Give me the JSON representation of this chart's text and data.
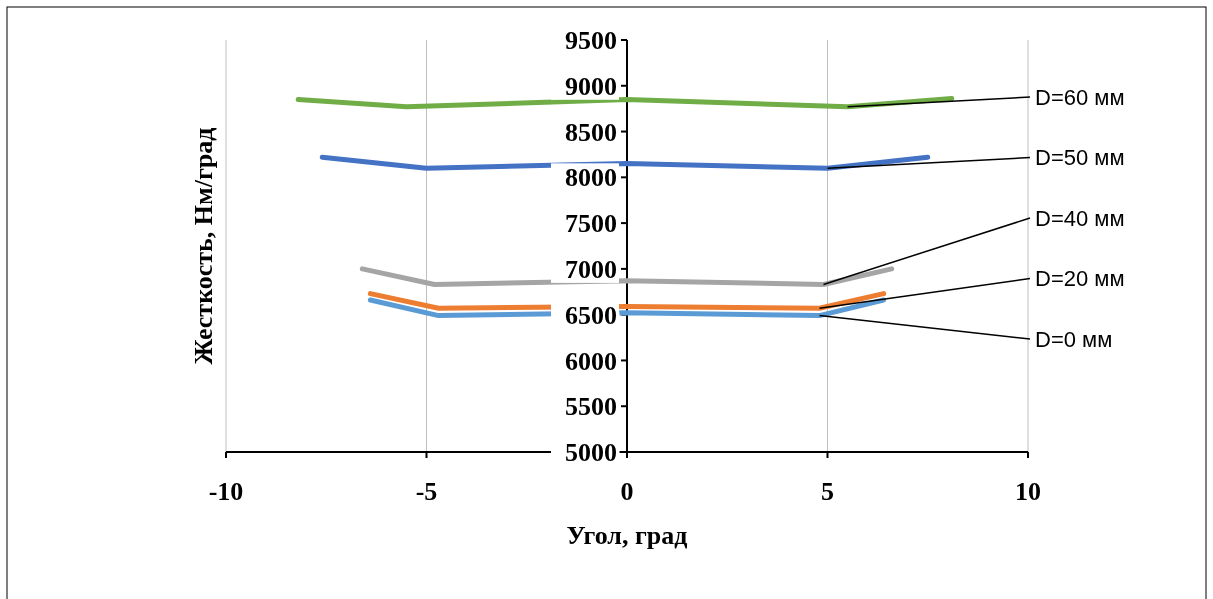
{
  "chart_data": {
    "type": "line",
    "xlabel": "Угол, град",
    "ylabel": "Жесткость, Нм/град",
    "xlim": [
      -10,
      10
    ],
    "xticks": [
      -10,
      -5,
      0,
      5,
      10
    ],
    "ylim": [
      5000,
      9500
    ],
    "yticks": [
      5000,
      5500,
      6000,
      6500,
      7000,
      7500,
      8000,
      8500,
      9000,
      9500
    ],
    "grid": "x",
    "line_style": "solid",
    "series": [
      {
        "name": "D=60 мм",
        "color": "#70ad47",
        "x": [
          -8.2,
          -5.5,
          0,
          5.5,
          8.1
        ],
        "values": [
          8850,
          8770,
          8850,
          8770,
          8860
        ]
      },
      {
        "name": "D=50 мм",
        "color": "#4472c4",
        "x": [
          -7.6,
          -5,
          0,
          5,
          7.5
        ],
        "values": [
          8220,
          8100,
          8150,
          8100,
          8220
        ]
      },
      {
        "name": "D=40 мм",
        "color": "#a5a5a5",
        "x": [
          -6.6,
          -4.8,
          0,
          4.9,
          6.6
        ],
        "values": [
          7000,
          6830,
          6870,
          6830,
          7000
        ]
      },
      {
        "name": "D=20 мм",
        "color": "#ed7d31",
        "x": [
          -6.4,
          -4.7,
          0,
          4.8,
          6.4
        ],
        "values": [
          6730,
          6570,
          6590,
          6570,
          6730
        ]
      },
      {
        "name": "D=0 мм",
        "color": "#5b9bd5",
        "x": [
          -6.4,
          -4.7,
          0,
          4.8,
          6.4
        ],
        "values": [
          6660,
          6490,
          6520,
          6490,
          6660
        ]
      }
    ]
  }
}
